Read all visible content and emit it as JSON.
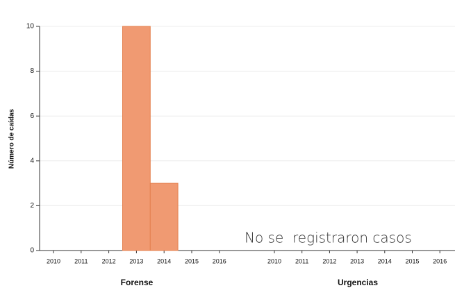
{
  "chart_data": [
    {
      "type": "bar",
      "title": "Forense",
      "y_label": "Número de caídas",
      "categories": [
        "2010",
        "2011",
        "2012",
        "2013",
        "2014",
        "2015",
        "2016"
      ],
      "values": [
        0,
        0,
        0,
        10,
        3,
        0,
        0
      ],
      "color": "#f09a72",
      "ylim": [
        0,
        10
      ],
      "yticks": [
        0,
        2,
        4,
        6,
        8,
        10
      ],
      "grid": true
    },
    {
      "type": "bar",
      "title": "Urgencias",
      "categories": [
        "2010",
        "2011",
        "2012",
        "2013",
        "2014",
        "2015",
        "2016"
      ],
      "annotation": "No se  registraron casos"
    }
  ]
}
